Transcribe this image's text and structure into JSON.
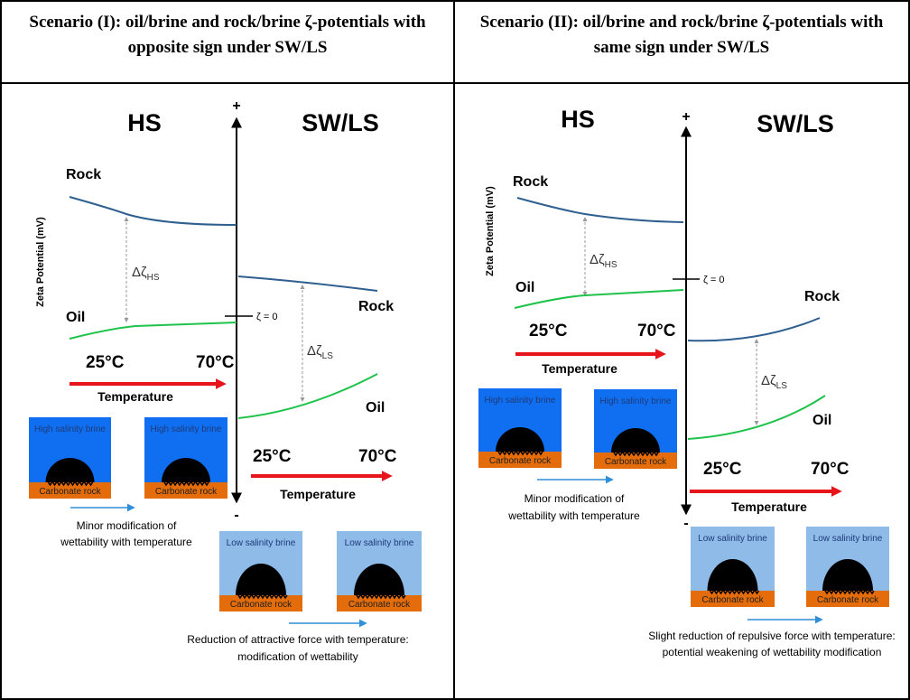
{
  "panels": [
    {
      "title_line1": "Scenario (I): oil/brine and rock/brine ζ-potentials with",
      "title_line2": "opposite sign under SW/LS",
      "hs_label": "HS",
      "swls_label": "SW/LS",
      "y_axis_label": "Zeta Potential (mV)",
      "plus": "+",
      "minus": "-",
      "zeta_zero": "ζ = 0",
      "hs": {
        "rock": "Rock",
        "oil": "Oil",
        "delta": "Δζ",
        "delta_sub": "HS",
        "t_low": "25°C",
        "t_high": "70°C",
        "temperature": "Temperature"
      },
      "ls": {
        "rock": "Rock",
        "oil": "Oil",
        "delta": "Δζ",
        "delta_sub": "LS",
        "t_low": "25°C",
        "t_high": "70°C",
        "temperature": "Temperature"
      },
      "hs_caption": [
        "Minor modification of",
        "wettability with temperature"
      ],
      "ls_caption": [
        "Reduction of attractive force with temperature:",
        "modification of wettability"
      ]
    },
    {
      "title_line1": "Scenario (II): oil/brine and rock/brine ζ-potentials with",
      "title_line2": "same sign under SW/LS",
      "hs_label": "HS",
      "swls_label": "SW/LS",
      "y_axis_label": "Zeta Potential (mV)",
      "plus": "+",
      "minus": "-",
      "zeta_zero": "ζ = 0",
      "hs": {
        "rock": "Rock",
        "oil": "Oil",
        "delta": "Δζ",
        "delta_sub": "HS",
        "t_low": "25°C",
        "t_high": "70°C",
        "temperature": "Temperature"
      },
      "ls": {
        "rock": "Rock",
        "oil": "Oil",
        "delta": "Δζ",
        "delta_sub": "LS",
        "t_low": "25°C",
        "t_high": "70°C",
        "temperature": "Temperature"
      },
      "hs_caption": [
        "Minor modification of",
        "wettability with temperature"
      ],
      "ls_caption": [
        "Slight reduction of repulsive force with temperature:",
        "potential weakening of wettability modification"
      ]
    }
  ],
  "boxes": {
    "high_brine": "High salinity brine",
    "low_brine": "Low salinity brine",
    "rock": "Carbonate rock"
  },
  "colors": {
    "rock_curve": "#2e5f8f",
    "oil_curve": "#1fc24a",
    "temp_arrow": "#e8141b",
    "blue_arrow": "#2f8fd8",
    "high_brine": "#0f6ff0",
    "low_brine": "#8ebbe8",
    "carbonate": "#e46c0a"
  }
}
